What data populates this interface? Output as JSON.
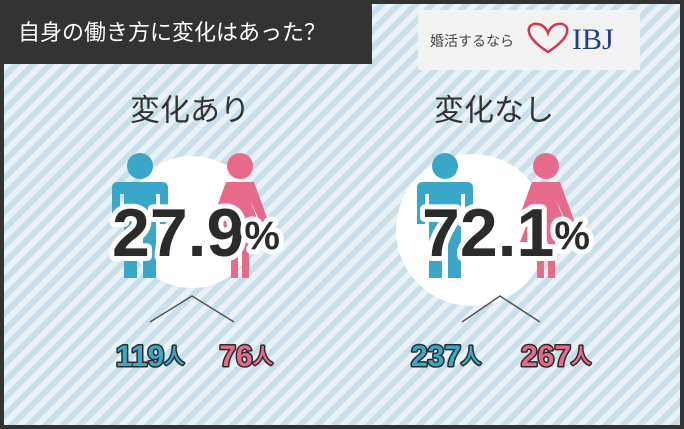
{
  "header": {
    "title": "自身の働き方に変化はあった？",
    "logo_text": "婚活するなら",
    "logo_brand": "IBJ"
  },
  "panels": [
    {
      "label": "変化あり",
      "percent": "27.9",
      "percent_unit": "%",
      "men": "119",
      "women": "76",
      "count_unit": "人"
    },
    {
      "label": "変化なし",
      "percent": "72.1",
      "percent_unit": "%",
      "men": "237",
      "women": "267",
      "count_unit": "人"
    }
  ]
}
